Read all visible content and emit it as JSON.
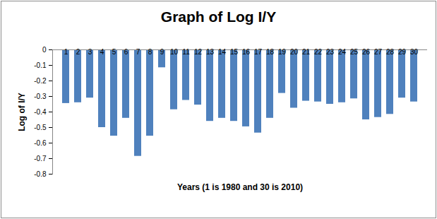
{
  "chart_data": {
    "type": "bar",
    "title": "Graph of Log I/Y",
    "x_label": "Years (1 is 1980 and 30 is 2010)",
    "y_label": "Log of I/Y",
    "categories": [
      1,
      2,
      3,
      4,
      5,
      6,
      7,
      8,
      9,
      10,
      11,
      12,
      13,
      14,
      15,
      16,
      17,
      18,
      19,
      20,
      21,
      22,
      23,
      24,
      25,
      26,
      27,
      28,
      29,
      30
    ],
    "values": [
      -0.345,
      -0.34,
      -0.31,
      -0.5,
      -0.555,
      -0.44,
      -0.685,
      -0.555,
      -0.115,
      -0.385,
      -0.325,
      -0.355,
      -0.46,
      -0.44,
      -0.46,
      -0.495,
      -0.535,
      -0.44,
      -0.28,
      -0.375,
      -0.33,
      -0.335,
      -0.35,
      -0.34,
      -0.315,
      -0.45,
      -0.435,
      -0.415,
      -0.31,
      -0.335
    ],
    "color": "#4f81bd",
    "ylim": [
      -0.8,
      0
    ],
    "yticks": [
      0,
      -0.1,
      -0.2,
      -0.3,
      -0.4,
      -0.5,
      -0.6,
      -0.7,
      -0.8
    ],
    "grid": false
  }
}
